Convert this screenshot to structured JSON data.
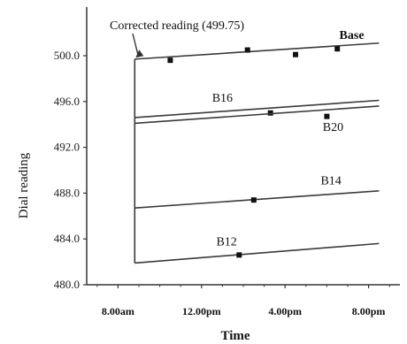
{
  "chart_data": {
    "type": "line",
    "xlabel": "Time",
    "ylabel": "Dial reading",
    "ylim": [
      480.0,
      500.0
    ],
    "y_ticks": [
      "480.0",
      "484.0",
      "488.0",
      "492.0",
      "496.0",
      "500.0"
    ],
    "x_ticks": [
      "8.00am",
      "12.00pm",
      "4.00pm",
      "8.00pm"
    ],
    "x_tick_hours": [
      8,
      12,
      16,
      20
    ],
    "xlim": [
      6.5,
      21.5
    ],
    "grid": false,
    "annotation": {
      "text": "Corrected reading (499.75)",
      "value": 499.75,
      "hour": 8.8
    },
    "series": [
      {
        "name": "Base",
        "x": [
          8.8,
          20.5
        ],
        "y": [
          499.7,
          501.1
        ],
        "points": [
          [
            10.5,
            499.6
          ],
          [
            14.2,
            500.5
          ],
          [
            16.5,
            500.1
          ],
          [
            18.5,
            500.6
          ]
        ]
      },
      {
        "name": "B16",
        "x": [
          8.8,
          20.5
        ],
        "y": [
          494.6,
          496.1
        ],
        "points": [
          [
            15.3,
            495.0
          ]
        ]
      },
      {
        "name": "B20",
        "x": [
          8.8,
          20.5
        ],
        "y": [
          494.1,
          495.6
        ],
        "points": [
          [
            18.0,
            494.7
          ]
        ]
      },
      {
        "name": "B14",
        "x": [
          8.8,
          20.5
        ],
        "y": [
          486.7,
          488.2
        ],
        "points": [
          [
            14.5,
            487.4
          ]
        ]
      },
      {
        "name": "B12",
        "x": [
          8.8,
          20.5
        ],
        "y": [
          481.9,
          483.6
        ],
        "points": [
          [
            13.8,
            482.6
          ]
        ]
      }
    ]
  }
}
